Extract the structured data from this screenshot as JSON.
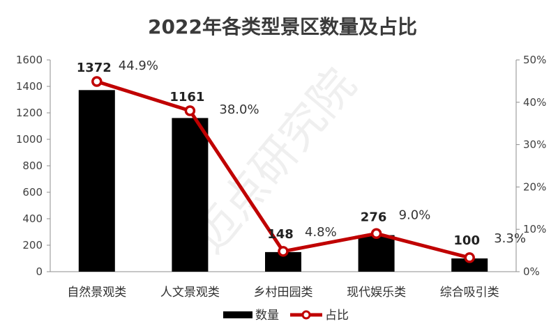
{
  "chart_data": {
    "type": "bar",
    "title": "2022年各类型景区数量及占比",
    "categories": [
      "自然景观类",
      "人文景观类",
      "乡村田园类",
      "现代娱乐类",
      "综合吸引类"
    ],
    "series": [
      {
        "name": "数量",
        "type": "bar",
        "axis": "left",
        "color": "#000000",
        "values": [
          1372,
          1161,
          148,
          276,
          100
        ],
        "labels": [
          "1372",
          "1161",
          "148",
          "276",
          "100"
        ]
      },
      {
        "name": "占比",
        "type": "line",
        "axis": "right",
        "color": "#c00000",
        "values": [
          44.9,
          38.0,
          4.8,
          9.0,
          3.3
        ],
        "labels": [
          "44.9%",
          "38.0%",
          "4.8%",
          "9.0%",
          "3.3%"
        ]
      }
    ],
    "ylim": [
      0,
      1600
    ],
    "yticks": [
      "0",
      "200",
      "400",
      "600",
      "800",
      "1000",
      "1200",
      "1400",
      "1600"
    ],
    "y2lim": [
      0,
      50
    ],
    "y2ticks": [
      "0%",
      "10%",
      "20%",
      "30%",
      "40%",
      "50%"
    ],
    "legend_position": "bottom",
    "grid": false
  },
  "watermark": "迈点研究院"
}
